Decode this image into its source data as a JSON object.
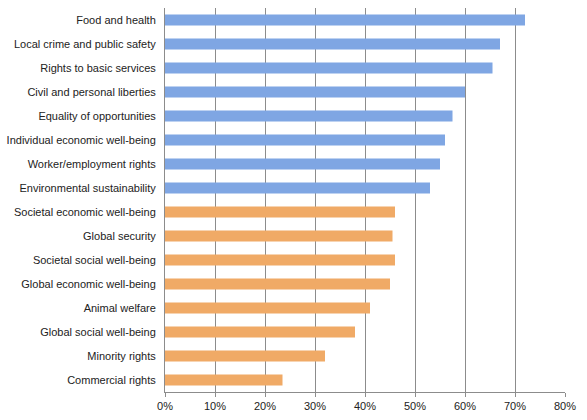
{
  "chart_data": {
    "type": "bar",
    "orientation": "horizontal",
    "categories": [
      "Food and health",
      "Local crime and public safety",
      "Rights to basic services",
      "Civil and personal liberties",
      "Equality of opportunities",
      "Individual economic well-being",
      "Worker/employment rights",
      "Environmental sustainability",
      "Societal economic well-being",
      "Global security",
      "Societal social well-being",
      "Global economic well-being",
      "Animal welfare",
      "Global social well-being",
      "Minority rights",
      "Commercial rights"
    ],
    "values": [
      72,
      67,
      65.5,
      60,
      57.5,
      56,
      55,
      53,
      46,
      45.5,
      46,
      45,
      41,
      38,
      32,
      23.5
    ],
    "colors": [
      "#7fa6e3",
      "#7fa6e3",
      "#7fa6e3",
      "#7fa6e3",
      "#7fa6e3",
      "#7fa6e3",
      "#7fa6e3",
      "#7fa6e3",
      "#f0aa66",
      "#f0aa66",
      "#f0aa66",
      "#f0aa66",
      "#f0aa66",
      "#f0aa66",
      "#f0aa66",
      "#f0aa66"
    ],
    "xlim": [
      0,
      80
    ],
    "xticks": [
      {
        "value": 0,
        "label": "0%"
      },
      {
        "value": 10,
        "label": "10%"
      },
      {
        "value": 20,
        "label": "20%"
      },
      {
        "value": 30,
        "label": "30%"
      },
      {
        "value": 40,
        "label": "40%"
      },
      {
        "value": 50,
        "label": "50%"
      },
      {
        "value": 60,
        "label": "60%"
      },
      {
        "value": 70,
        "label": "70%"
      },
      {
        "value": 80,
        "label": "80%"
      }
    ],
    "grid": true
  }
}
